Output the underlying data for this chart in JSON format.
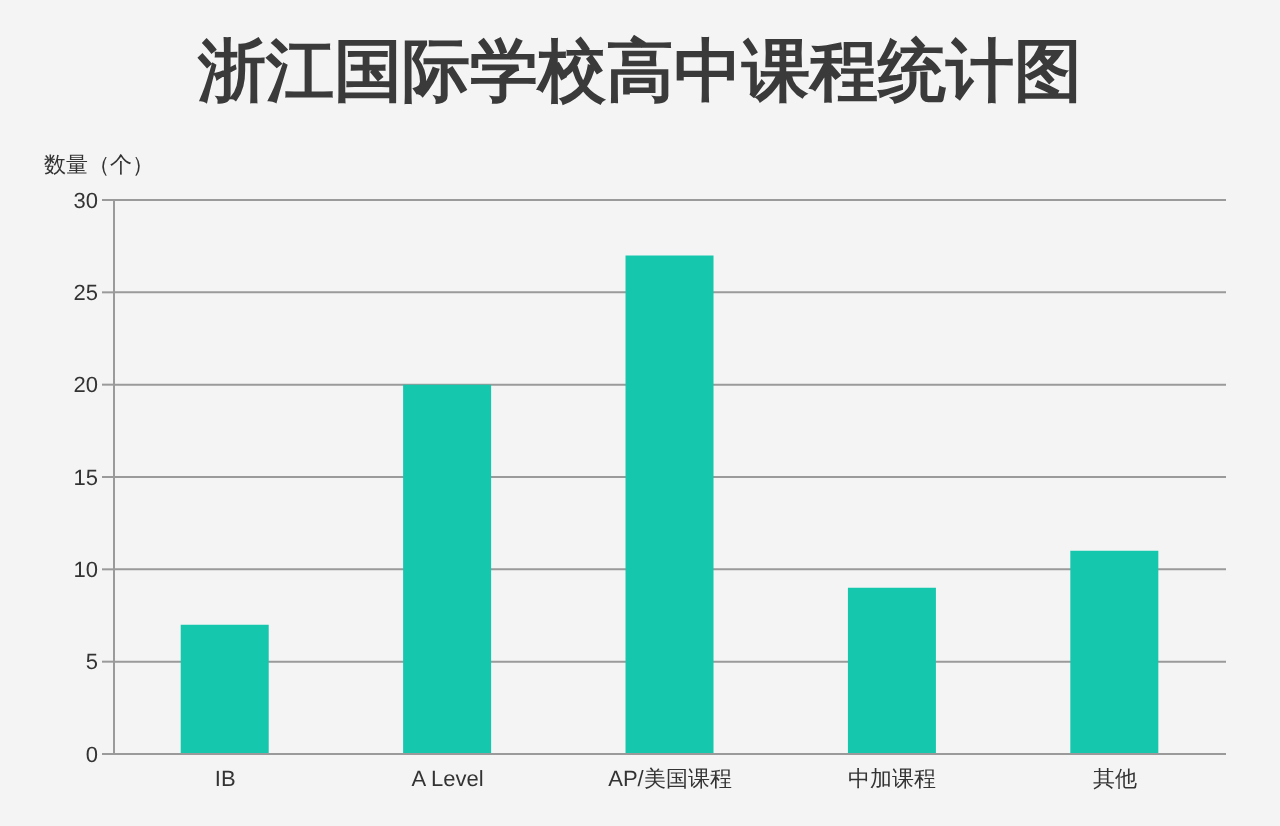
{
  "chart_data": {
    "type": "bar",
    "title": "浙江国际学校高中课程统计图",
    "ylabel": "数量（个）",
    "categories": [
      "IB",
      "A Level",
      "AP/美国课程",
      "中加课程",
      "其他"
    ],
    "values": [
      7,
      20,
      27,
      9,
      11
    ],
    "color": "#15c7ad",
    "ylim": [
      0,
      30
    ],
    "yticks": [
      0,
      5,
      10,
      15,
      20,
      25,
      30
    ],
    "grid": "y"
  }
}
